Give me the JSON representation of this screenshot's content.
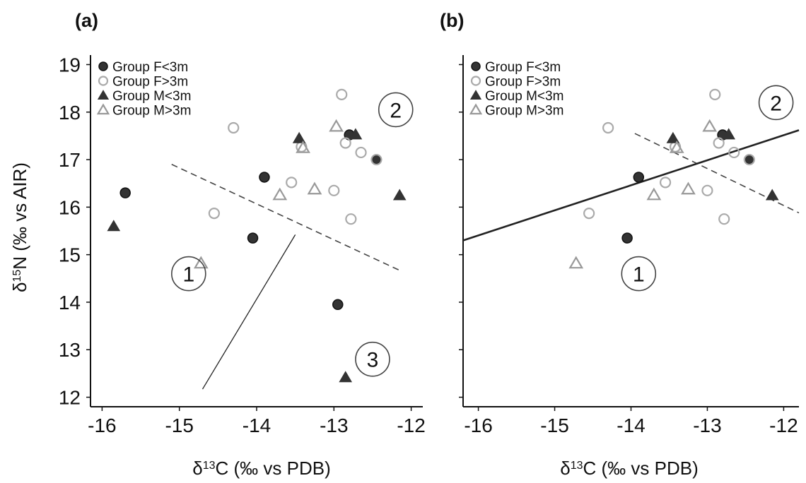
{
  "chart_data": [
    {
      "panel": "(a)",
      "type": "scatter",
      "xlabel_main": "δ",
      "xlabel_sup": "13",
      "xlabel_rest": "C (‰ vs PDB)",
      "ylabel_main": "δ",
      "ylabel_sup": "15",
      "ylabel_rest": "N (‰ vs AIR)",
      "xlim": [
        -16.15,
        -11.85
      ],
      "ylim": [
        11.8,
        19.2
      ],
      "xticks": [
        -16,
        -15,
        -14,
        -13,
        -12
      ],
      "xtick_labels": [
        "-16",
        "-15",
        "-14",
        "-13",
        "-12"
      ],
      "yticks": [
        12,
        13,
        14,
        15,
        16,
        17,
        18,
        19
      ],
      "ytick_labels": [
        "12",
        "13",
        "14",
        "15",
        "16",
        "17",
        "18",
        "19"
      ],
      "legend": [
        {
          "label": "Group F<3m",
          "marker": "circle-filled"
        },
        {
          "label": "Group F>3m",
          "marker": "circle-open"
        },
        {
          "label": "Group M<3m",
          "marker": "triangle-filled"
        },
        {
          "label": "Group M>3m",
          "marker": "triangle-open"
        }
      ],
      "series": [
        {
          "name": "Group F<3m",
          "marker": "circle-filled",
          "x": [
            -15.7,
            -14.05,
            -13.9,
            -12.95,
            -12.8,
            -12.45
          ],
          "y": [
            16.3,
            15.35,
            16.63,
            13.95,
            17.52,
            17.0
          ]
        },
        {
          "name": "Group F>3m",
          "marker": "circle-open",
          "x": [
            -14.55,
            -14.3,
            -13.55,
            -13.42,
            -13.0,
            -12.9,
            -12.85,
            -12.78,
            -12.65,
            -12.45
          ],
          "y": [
            15.87,
            17.67,
            16.52,
            17.27,
            16.35,
            18.37,
            17.35,
            15.75,
            17.15,
            17.0
          ]
        },
        {
          "name": "Group M<3m",
          "marker": "triangle-filled",
          "x": [
            -15.85,
            -13.45,
            -12.85,
            -12.72,
            -12.15
          ],
          "y": [
            15.6,
            17.45,
            12.42,
            17.53,
            16.25
          ]
        },
        {
          "name": "Group M>3m",
          "marker": "triangle-open",
          "x": [
            -14.72,
            -13.7,
            -13.4,
            -13.25,
            -12.97
          ],
          "y": [
            14.82,
            16.26,
            17.25,
            16.38,
            17.7
          ]
        }
      ],
      "lines": [
        {
          "style": "dashed",
          "x": [
            -15.1,
            -12.15
          ],
          "y": [
            16.9,
            14.67
          ]
        },
        {
          "style": "solid-thin",
          "x": [
            -14.7,
            -13.5
          ],
          "y": [
            12.17,
            15.42
          ]
        }
      ],
      "annotations": [
        {
          "text": "1",
          "x": -14.88,
          "y": 14.6
        },
        {
          "text": "2",
          "x": -12.2,
          "y": 18.05
        },
        {
          "text": "3",
          "x": -12.5,
          "y": 12.8
        }
      ]
    },
    {
      "panel": "(b)",
      "type": "scatter",
      "xlabel_main": "δ",
      "xlabel_sup": "13",
      "xlabel_rest": "C (‰ vs PDB)",
      "xlim": [
        -16.2,
        -11.8
      ],
      "ylim": [
        11.8,
        19.2
      ],
      "xticks": [
        -16,
        -15,
        -14,
        -13,
        -12
      ],
      "xtick_labels": [
        "-16",
        "-15",
        "-14",
        "-13",
        "-12"
      ],
      "yticks": [
        12,
        13,
        14,
        15,
        16,
        17,
        18,
        19
      ],
      "ytick_labels": [],
      "legend": [
        {
          "label": "Group F<3m",
          "marker": "circle-filled"
        },
        {
          "label": "Group F>3m",
          "marker": "circle-open"
        },
        {
          "label": "Group M<3m",
          "marker": "triangle-filled"
        },
        {
          "label": "Group M>3m",
          "marker": "triangle-open"
        }
      ],
      "series": [
        {
          "name": "Group F<3m",
          "marker": "circle-filled",
          "x": [
            -14.05,
            -13.9,
            -12.8,
            -12.45
          ],
          "y": [
            15.35,
            16.63,
            17.52,
            17.0
          ]
        },
        {
          "name": "Group F>3m",
          "marker": "circle-open",
          "x": [
            -14.55,
            -14.3,
            -13.55,
            -13.42,
            -13.0,
            -12.9,
            -12.85,
            -12.78,
            -12.65,
            -12.45
          ],
          "y": [
            15.87,
            17.67,
            16.52,
            17.27,
            16.35,
            18.37,
            17.35,
            15.75,
            17.15,
            17.0
          ]
        },
        {
          "name": "Group M<3m",
          "marker": "triangle-filled",
          "x": [
            -13.45,
            -12.72,
            -12.15
          ],
          "y": [
            17.45,
            17.53,
            16.25
          ]
        },
        {
          "name": "Group M>3m",
          "marker": "triangle-open",
          "x": [
            -14.72,
            -13.7,
            -13.4,
            -13.25,
            -12.97
          ],
          "y": [
            14.82,
            16.26,
            17.25,
            16.38,
            17.7
          ]
        }
      ],
      "lines": [
        {
          "style": "dashed",
          "x": [
            -13.95,
            -11.8
          ],
          "y": [
            17.55,
            15.88
          ]
        },
        {
          "style": "solid-thick",
          "x": [
            -16.2,
            -11.8
          ],
          "y": [
            15.3,
            17.62
          ]
        }
      ],
      "annotations": [
        {
          "text": "1",
          "x": -13.9,
          "y": 14.6
        },
        {
          "text": "2",
          "x": -12.1,
          "y": 18.2
        }
      ]
    }
  ]
}
